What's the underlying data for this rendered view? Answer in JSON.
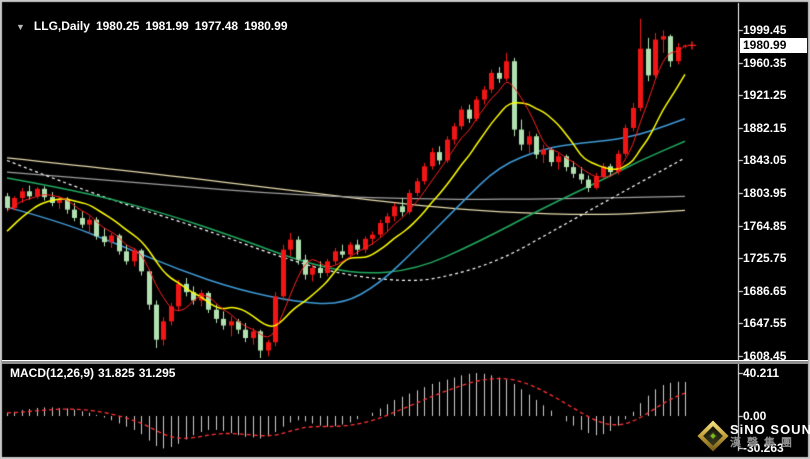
{
  "window": {
    "symbol": "LLG,Daily",
    "open": "1980.25",
    "high": "1981.99",
    "low": "1977.48",
    "close": "1980.99"
  },
  "indicator": {
    "label": "MACD(12,26,9)",
    "main_value": "31.825",
    "signal_value": "31.295"
  },
  "axis": {
    "main_ticks": [
      "1999.45",
      "1960.35",
      "1921.25",
      "1882.15",
      "1843.05",
      "1803.95",
      "1764.85",
      "1725.75",
      "1686.65",
      "1647.55",
      "1608.45"
    ],
    "current_price": "1980.99",
    "macd_ticks": [
      "40.211",
      "0.00",
      "-30.263"
    ]
  },
  "watermark": {
    "brand": "SiNO SOUND",
    "brand_cn": "漢聲集團"
  },
  "colors": {
    "background": "#000000",
    "up_candle": "#f21515",
    "down_candle": "#b2e0b0",
    "ma_fast_red": "#ff2020",
    "ma_yellow": "#ffff00",
    "ma_blue": "#3f9bd8",
    "ma_green": "#21aa5f",
    "ma_white_dotted": "#ffffff",
    "ma_gray": "#a0a0a0",
    "ma_tan": "#e8dcae",
    "macd_histogram": "#cccccc",
    "macd_signal": "#ff3333",
    "axis_text": "#ffffff",
    "frame": "#c8c8c8"
  },
  "chart_data": {
    "type": "candlestick",
    "title": "LLG,Daily",
    "price_axis_range": [
      1603,
      2014
    ],
    "grid": false,
    "x_axis_labels_visible": false,
    "candles": [
      [
        1800,
        1804,
        1782,
        1786
      ],
      [
        1786,
        1800,
        1783,
        1798
      ],
      [
        1798,
        1810,
        1792,
        1806
      ],
      [
        1806,
        1813,
        1796,
        1800
      ],
      [
        1800,
        1811,
        1797,
        1809
      ],
      [
        1809,
        1812,
        1795,
        1799
      ],
      [
        1799,
        1805,
        1788,
        1792
      ],
      [
        1792,
        1800,
        1785,
        1797
      ],
      [
        1797,
        1799,
        1779,
        1784
      ],
      [
        1784,
        1792,
        1770,
        1774
      ],
      [
        1774,
        1782,
        1762,
        1766
      ],
      [
        1766,
        1776,
        1755,
        1772
      ],
      [
        1772,
        1775,
        1748,
        1752
      ],
      [
        1752,
        1762,
        1740,
        1745
      ],
      [
        1745,
        1756,
        1738,
        1753
      ],
      [
        1753,
        1755,
        1730,
        1734
      ],
      [
        1734,
        1742,
        1718,
        1722
      ],
      [
        1722,
        1738,
        1716,
        1735
      ],
      [
        1735,
        1737,
        1705,
        1710
      ],
      [
        1710,
        1712,
        1664,
        1670
      ],
      [
        1670,
        1675,
        1618,
        1628
      ],
      [
        1628,
        1655,
        1621,
        1650
      ],
      [
        1650,
        1672,
        1645,
        1668
      ],
      [
        1668,
        1700,
        1662,
        1695
      ],
      [
        1695,
        1702,
        1680,
        1685
      ],
      [
        1685,
        1692,
        1670,
        1675
      ],
      [
        1675,
        1688,
        1668,
        1684
      ],
      [
        1684,
        1686,
        1660,
        1664
      ],
      [
        1664,
        1670,
        1648,
        1653
      ],
      [
        1653,
        1662,
        1640,
        1645
      ],
      [
        1645,
        1656,
        1632,
        1650
      ],
      [
        1650,
        1653,
        1635,
        1640
      ],
      [
        1640,
        1648,
        1625,
        1630
      ],
      [
        1630,
        1642,
        1622,
        1638
      ],
      [
        1638,
        1640,
        1606,
        1615
      ],
      [
        1615,
        1628,
        1608,
        1625
      ],
      [
        1625,
        1685,
        1620,
        1680
      ],
      [
        1680,
        1742,
        1675,
        1736
      ],
      [
        1736,
        1756,
        1728,
        1748
      ],
      [
        1748,
        1752,
        1718,
        1724
      ],
      [
        1724,
        1730,
        1700,
        1706
      ],
      [
        1706,
        1718,
        1698,
        1714
      ],
      [
        1714,
        1722,
        1702,
        1708
      ],
      [
        1708,
        1725,
        1704,
        1722
      ],
      [
        1722,
        1738,
        1718,
        1734
      ],
      [
        1734,
        1742,
        1726,
        1730
      ],
      [
        1730,
        1745,
        1725,
        1742
      ],
      [
        1742,
        1748,
        1730,
        1736
      ],
      [
        1736,
        1752,
        1732,
        1749
      ],
      [
        1749,
        1758,
        1742,
        1754
      ],
      [
        1754,
        1772,
        1750,
        1768
      ],
      [
        1768,
        1780,
        1758,
        1776
      ],
      [
        1776,
        1792,
        1770,
        1788
      ],
      [
        1788,
        1798,
        1776,
        1781
      ],
      [
        1781,
        1808,
        1778,
        1804
      ],
      [
        1804,
        1822,
        1800,
        1818
      ],
      [
        1818,
        1840,
        1814,
        1836
      ],
      [
        1836,
        1858,
        1832,
        1853
      ],
      [
        1853,
        1860,
        1838,
        1843
      ],
      [
        1843,
        1872,
        1840,
        1868
      ],
      [
        1868,
        1888,
        1862,
        1884
      ],
      [
        1884,
        1908,
        1880,
        1904
      ],
      [
        1904,
        1910,
        1888,
        1893
      ],
      [
        1893,
        1920,
        1890,
        1916
      ],
      [
        1916,
        1932,
        1910,
        1928
      ],
      [
        1928,
        1952,
        1924,
        1948
      ],
      [
        1948,
        1955,
        1936,
        1941
      ],
      [
        1941,
        1972,
        1938,
        1962
      ],
      [
        1962,
        1966,
        1872,
        1880
      ],
      [
        1880,
        1892,
        1855,
        1862
      ],
      [
        1862,
        1878,
        1852,
        1872
      ],
      [
        1872,
        1875,
        1845,
        1850
      ],
      [
        1850,
        1862,
        1840,
        1856
      ],
      [
        1856,
        1858,
        1836,
        1841
      ],
      [
        1841,
        1852,
        1832,
        1848
      ],
      [
        1848,
        1850,
        1830,
        1835
      ],
      [
        1835,
        1842,
        1822,
        1827
      ],
      [
        1827,
        1835,
        1815,
        1820
      ],
      [
        1820,
        1825,
        1805,
        1810
      ],
      [
        1810,
        1828,
        1808,
        1824
      ],
      [
        1824,
        1840,
        1820,
        1836
      ],
      [
        1836,
        1839,
        1824,
        1829
      ],
      [
        1829,
        1855,
        1826,
        1851
      ],
      [
        1851,
        1886,
        1848,
        1882
      ],
      [
        1882,
        1912,
        1878,
        1906
      ],
      [
        1906,
        2013,
        1902,
        1977
      ],
      [
        1977,
        1990,
        1938,
        1945
      ],
      [
        1945,
        1996,
        1942,
        1988
      ],
      [
        1988,
        1999,
        1972,
        1992
      ],
      [
        1992,
        1994,
        1955,
        1962
      ],
      [
        1962,
        1984,
        1958,
        1979
      ],
      [
        1980.25,
        1981.99,
        1977.48,
        1980.99
      ]
    ],
    "overlays": [
      {
        "name": "ma-fast-red",
        "color": "#ff2020",
        "width": 1,
        "dash": [],
        "sma_period": 5
      },
      {
        "name": "ma-yellow",
        "color": "#ffff00",
        "width": 1.5,
        "dash": [],
        "sma_period": 10
      },
      {
        "name": "ma-blue",
        "color": "#3f9bd8",
        "width": 1.5,
        "dash": [],
        "points": [
          [
            0,
            1787
          ],
          [
            7,
            1770
          ],
          [
            15,
            1742
          ],
          [
            23,
            1712
          ],
          [
            31,
            1688
          ],
          [
            39,
            1673
          ],
          [
            45,
            1670
          ],
          [
            50,
            1695
          ],
          [
            55,
            1738
          ],
          [
            61,
            1792
          ],
          [
            66,
            1836
          ],
          [
            72,
            1857
          ],
          [
            77,
            1864
          ],
          [
            82,
            1868
          ],
          [
            86,
            1877
          ],
          [
            91,
            1893
          ]
        ]
      },
      {
        "name": "ma-green",
        "color": "#21aa5f",
        "width": 1.5,
        "dash": [],
        "points": [
          [
            0,
            1822
          ],
          [
            10,
            1806
          ],
          [
            21,
            1780
          ],
          [
            31,
            1750
          ],
          [
            39,
            1723
          ],
          [
            47,
            1706
          ],
          [
            55,
            1712
          ],
          [
            63,
            1744
          ],
          [
            72,
            1786
          ],
          [
            80,
            1820
          ],
          [
            85,
            1843
          ],
          [
            91,
            1866
          ]
        ]
      },
      {
        "name": "ma-white-dotted",
        "color": "#ffffff",
        "width": 1.2,
        "dash": [
          3,
          3
        ],
        "points": [
          [
            0,
            1843
          ],
          [
            12,
            1801
          ],
          [
            26,
            1762
          ],
          [
            37,
            1726
          ],
          [
            45,
            1706
          ],
          [
            53,
            1698
          ],
          [
            58,
            1701
          ],
          [
            66,
            1722
          ],
          [
            74,
            1762
          ],
          [
            82,
            1802
          ],
          [
            91,
            1846
          ]
        ]
      },
      {
        "name": "ma-gray",
        "color": "#a0a0a0",
        "width": 1.3,
        "dash": [],
        "points": [
          [
            0,
            1829
          ],
          [
            19,
            1815
          ],
          [
            39,
            1801
          ],
          [
            59,
            1796
          ],
          [
            74,
            1797
          ],
          [
            91,
            1800
          ]
        ]
      },
      {
        "name": "ma-tan",
        "color": "#e8dcae",
        "width": 1.3,
        "dash": [],
        "points": [
          [
            0,
            1846
          ],
          [
            19,
            1828
          ],
          [
            39,
            1806
          ],
          [
            55,
            1789
          ],
          [
            66,
            1781
          ],
          [
            80,
            1777
          ],
          [
            91,
            1783
          ]
        ]
      }
    ],
    "macd": {
      "range": [
        -30.263,
        40.211
      ],
      "signal_period": 9,
      "histogram": [
        3,
        4,
        5.5,
        6.5,
        7.5,
        8,
        8,
        7.5,
        7,
        6,
        4.5,
        3,
        1,
        -1.5,
        -4,
        -7,
        -10,
        -13,
        -17,
        -23,
        -28,
        -30.263,
        -29,
        -26,
        -22,
        -18,
        -15,
        -13,
        -13,
        -14,
        -16,
        -18,
        -19.5,
        -20,
        -21,
        -19,
        -15,
        -10,
        -6,
        -4,
        -5,
        -7,
        -9,
        -10,
        -9.5,
        -8,
        -6,
        -3,
        0,
        3,
        7,
        11,
        15,
        18,
        21,
        24,
        27,
        30,
        32,
        34,
        36,
        38,
        39.5,
        40.211,
        39.5,
        38,
        36,
        34,
        30,
        25,
        20,
        15,
        10,
        5,
        0,
        -5,
        -9,
        -13,
        -16,
        -18,
        -17,
        -14,
        -9,
        -3,
        4,
        12,
        19,
        25,
        29,
        31,
        32,
        31.825
      ]
    }
  }
}
